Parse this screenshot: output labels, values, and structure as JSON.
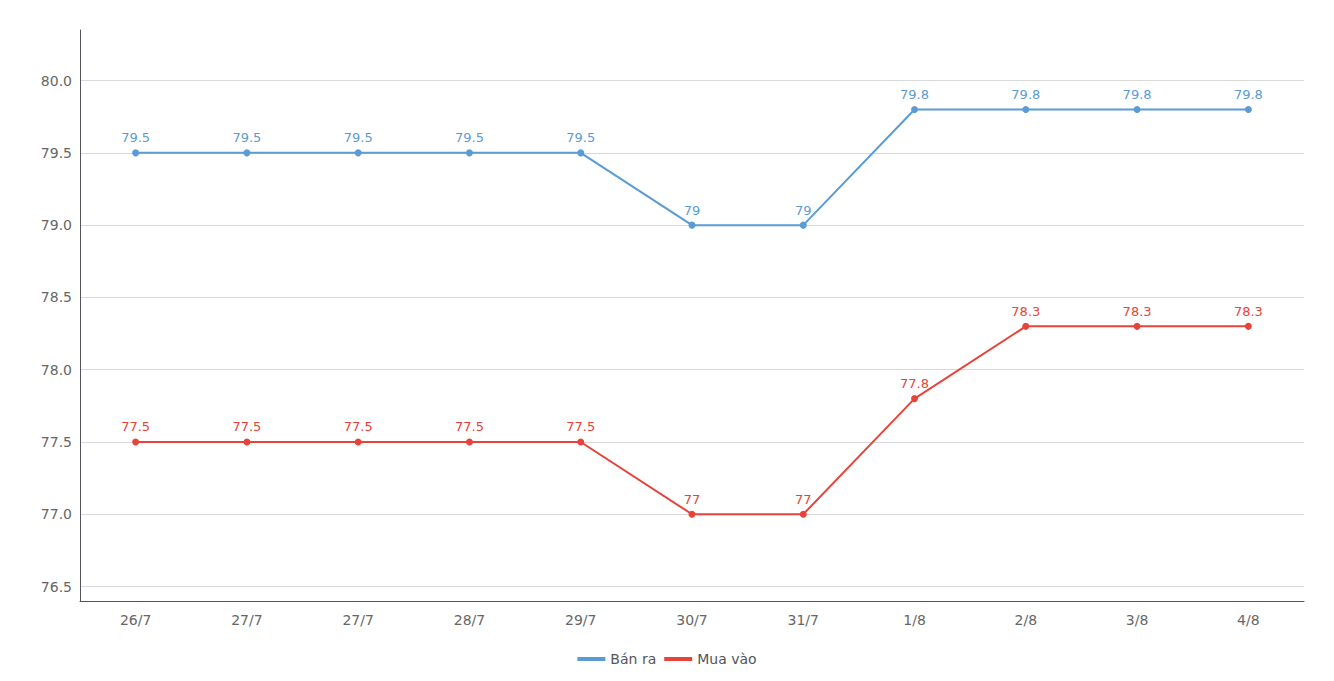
{
  "chart_data": {
    "type": "line",
    "categories": [
      "26/7",
      "27/7",
      "27/7",
      "28/7",
      "29/7",
      "30/7",
      "31/7",
      "1/8",
      "2/8",
      "3/8",
      "4/8"
    ],
    "series": [
      {
        "name": "Bán ra",
        "color": "#5b9bd5",
        "values": [
          79.5,
          79.5,
          79.5,
          79.5,
          79.5,
          79.0,
          79.0,
          79.8,
          79.8,
          79.8,
          79.8
        ]
      },
      {
        "name": "Mua vào",
        "color": "#e8433a",
        "values": [
          77.5,
          77.5,
          77.5,
          77.5,
          77.5,
          77.0,
          77.0,
          77.8,
          78.3,
          78.3,
          78.3
        ]
      }
    ],
    "ylim": [
      76.4,
      80.35
    ],
    "yticks": [
      76.5,
      {
        "value": 77.0,
        "label": "77.0"
      },
      77.5,
      {
        "value": 78.0,
        "label": "78.0"
      },
      78.5,
      {
        "value": 79.0,
        "label": "79.0"
      },
      79.5,
      {
        "value": 80.0,
        "label": "80.0"
      }
    ],
    "grid": true,
    "legend": "bottom",
    "data_labels": true,
    "marker": "circle"
  }
}
